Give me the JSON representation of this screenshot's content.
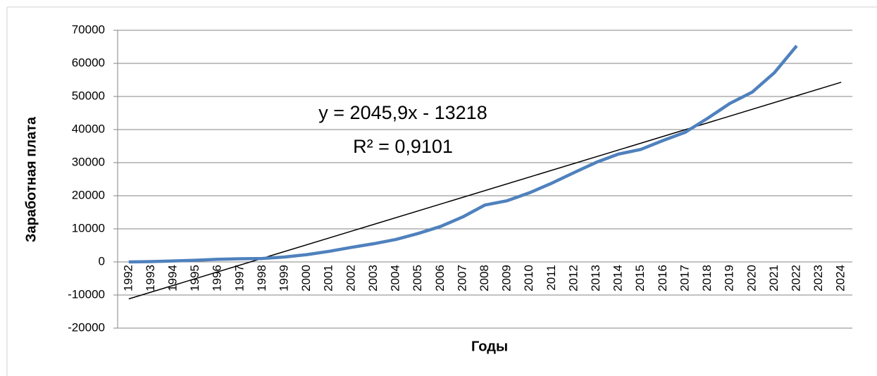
{
  "chart_data": {
    "type": "line",
    "x_label": "Годы",
    "y_label": "Заработная плата",
    "categories": [
      "1992",
      "1993",
      "1994",
      "1995",
      "1996",
      "1997",
      "1998",
      "1999",
      "2000",
      "2001",
      "2002",
      "2003",
      "2004",
      "2005",
      "2006",
      "2007",
      "2008",
      "2009",
      "2010",
      "2011",
      "2012",
      "2013",
      "2014",
      "2015",
      "2016",
      "2017",
      "2018",
      "2019",
      "2020",
      "2021",
      "2022",
      "2023",
      "2024"
    ],
    "series": [
      {
        "color": "#4f81bd",
        "values": [
          0,
          100,
          300,
          500,
          800,
          950,
          1050,
          1500,
          2200,
          3200,
          4400,
          5500,
          6800,
          8600,
          10700,
          13600,
          17200,
          18500,
          20900,
          23800,
          27000,
          30100,
          32600,
          34000,
          36700,
          39200,
          43400,
          47900,
          51300,
          57200,
          65300,
          null,
          null
        ]
      }
    ],
    "trendline": {
      "slope": 2045.9,
      "intercept": -13218,
      "color": "#000000",
      "equation": "y = 2045,9x - 13218",
      "r_squared": "R² = 0,9101"
    },
    "ylim": [
      -20000,
      70000
    ],
    "yticks": [
      -20000,
      -10000,
      0,
      10000,
      20000,
      30000,
      40000,
      50000,
      60000,
      70000
    ],
    "grid": true
  }
}
